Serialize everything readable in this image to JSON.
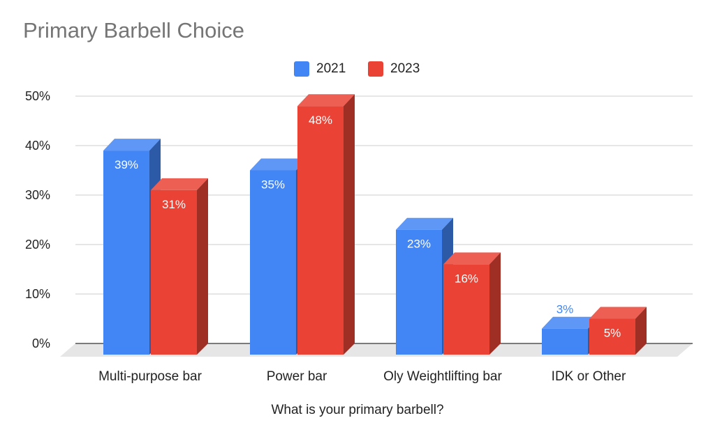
{
  "chart_data": {
    "type": "bar",
    "title": "Primary Barbell Choice",
    "xlabel": "What is your primary barbell?",
    "ylabel": "",
    "categories": [
      "Multi-purpose bar",
      "Power bar",
      "Oly Weightlifting bar",
      "IDK or Other"
    ],
    "series": [
      {
        "name": "2021",
        "color": "#4285f4",
        "values": [
          39,
          35,
          23,
          3
        ],
        "labels": [
          "39%",
          "35%",
          "23%",
          "3%"
        ]
      },
      {
        "name": "2023",
        "color": "#ea4335",
        "values": [
          31,
          48,
          16,
          5
        ],
        "labels": [
          "31%",
          "48%",
          "16%",
          "5%"
        ]
      }
    ],
    "ylim": [
      0,
      50
    ],
    "yticks": [
      0,
      10,
      20,
      30,
      40,
      50
    ],
    "ytick_labels": [
      "0%",
      "10%",
      "20%",
      "30%",
      "40%",
      "50%"
    ],
    "grid": true,
    "legend_position": "top-center",
    "style": "3d-bar"
  }
}
